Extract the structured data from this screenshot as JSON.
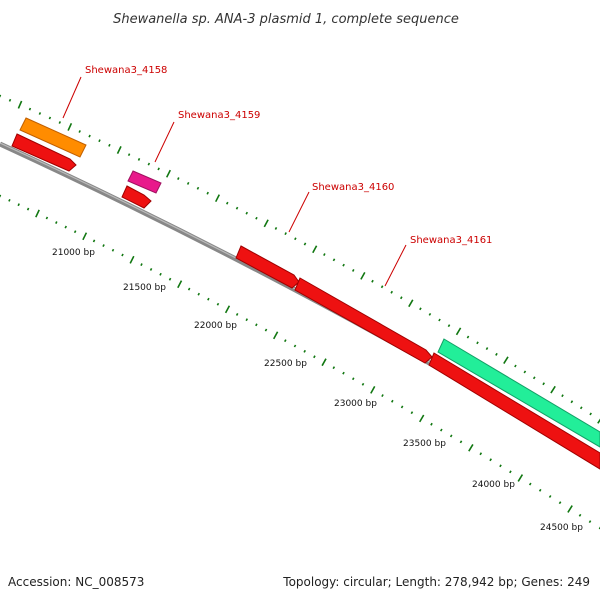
{
  "title": "Shewanella sp. ANA-3 plasmid 1, complete sequence",
  "footer": {
    "accession": "Accession: NC_008573",
    "summary": "Topology: circular; Length: 278,942 bp; Genes: 249"
  },
  "position_labels": [
    "21000 bp",
    "21500 bp",
    "22000 bp",
    "22500 bp",
    "23000 bp",
    "23500 bp",
    "24000 bp",
    "24500 bp"
  ],
  "gene_labels": [
    "Shewana3_4158",
    "Shewana3_4159",
    "Shewana3_4160",
    "Shewana3_4161"
  ],
  "colors": {
    "backbone": "#777777",
    "ticks": "#117711",
    "gene_label": "#cc0000",
    "cds": "#ee1111",
    "orange_feature": "#ff8c00",
    "magenta_feature": "#e8198b",
    "teal_feature": "#22ee99"
  }
}
